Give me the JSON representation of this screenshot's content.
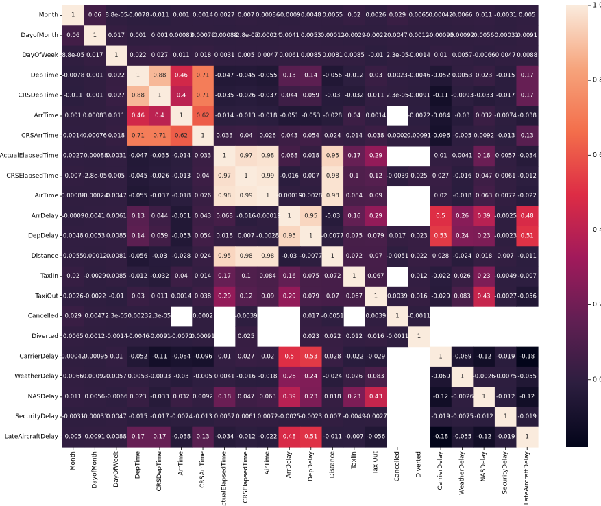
{
  "chart_data": {
    "type": "heatmap",
    "title": "",
    "xlabel": "",
    "ylabel": "",
    "labels": [
      "Month",
      "DayofMonth",
      "DayOfWeek",
      "DepTime",
      "CRSDepTime",
      "ArrTime",
      "CRSArrTime",
      "ActualElapsedTime",
      "CRSElapsedTime",
      "AirTime",
      "ArrDelay",
      "DepDelay",
      "Distance",
      "TaxiIn",
      "TaxiOut",
      "Cancelled",
      "Diverted",
      "CarrierDelay",
      "WeatherDelay",
      "NASDelay",
      "SecurityDelay",
      "LateAircraftDelay"
    ],
    "matrix": [
      [
        "1",
        "0.06",
        "8.8e-05",
        "-0.0078",
        "-0.011",
        "0.001",
        "0.0014",
        "0.0027",
        "0.007",
        "0.00086",
        "-0.0009",
        "0.0048",
        "0.0055",
        "0.02",
        "0.0026",
        "0.029",
        "0.0065",
        "0.00042",
        "0.0066",
        "0.011",
        "-0.0031",
        "0.005"
      ],
      [
        "0.06",
        "1",
        "0.017",
        "0.001",
        "0.001",
        "0.00083",
        "0.00076",
        "-0.00088",
        "-2.8e-05",
        "-0.00024",
        "0.0041",
        "0.0053",
        "0.00012",
        "-0.0029",
        "-0.0022",
        "0.0047",
        "0.0012",
        "-0.00095",
        "0.00092",
        "0.0056",
        "-0.00031",
        "0.0091"
      ],
      [
        "8.8e-05",
        "0.017",
        "1",
        "0.022",
        "0.027",
        "0.011",
        "0.018",
        "0.0031",
        "0.005",
        "0.0047",
        "0.0061",
        "0.0085",
        "0.0081",
        "0.0085",
        "-0.01",
        "2.3e-05",
        "-0.0014",
        "0.01",
        "0.0057",
        "-0.0066",
        "0.0047",
        "0.0088"
      ],
      [
        "-0.0078",
        "0.001",
        "0.022",
        "1",
        "0.88",
        "0.46",
        "0.71",
        "-0.047",
        "-0.045",
        "-0.055",
        "0.13",
        "0.14",
        "-0.056",
        "-0.012",
        "0.03",
        "0.0023",
        "-0.0046",
        "-0.052",
        "0.0053",
        "0.023",
        "-0.015",
        "0.17"
      ],
      [
        "-0.011",
        "0.001",
        "0.027",
        "0.88",
        "1",
        "0.4",
        "0.71",
        "-0.035",
        "-0.026",
        "-0.037",
        "0.044",
        "0.059",
        "-0.03",
        "-0.032",
        "0.011",
        "2.3e-05",
        "-0.0091",
        "-0.11",
        "-0.0093",
        "-0.033",
        "-0.017",
        "0.17"
      ],
      [
        "0.001",
        "0.00083",
        "0.011",
        "0.46",
        "0.4",
        "1",
        "0.62",
        "-0.014",
        "-0.013",
        "-0.018",
        "-0.051",
        "-0.053",
        "-0.028",
        "0.04",
        "0.0014",
        null,
        "-0.0072",
        "-0.084",
        "-0.03",
        "0.032",
        "-0.0074",
        "-0.038"
      ],
      [
        "0.0014",
        "0.00076",
        "0.018",
        "0.71",
        "0.71",
        "0.62",
        "1",
        "0.033",
        "0.04",
        "0.026",
        "0.043",
        "0.054",
        "0.024",
        "0.014",
        "0.038",
        "0.0002",
        "0.00091",
        "-0.096",
        "-0.005",
        "0.0092",
        "-0.013",
        "0.13"
      ],
      [
        "0.0027",
        "-0.00088",
        "0.0031",
        "-0.047",
        "-0.035",
        "-0.014",
        "0.033",
        "1",
        "0.97",
        "0.98",
        "0.068",
        "0.018",
        "0.95",
        "0.17",
        "0.29",
        null,
        null,
        "0.01",
        "0.0041",
        "0.18",
        "0.0057",
        "-0.034"
      ],
      [
        "0.007",
        "-2.8e-05",
        "0.005",
        "-0.045",
        "-0.026",
        "-0.013",
        "0.04",
        "0.97",
        "1",
        "0.99",
        "-0.016",
        "0.007",
        "0.98",
        "0.1",
        "0.12",
        "-0.0039",
        "0.025",
        "0.027",
        "-0.016",
        "0.047",
        "0.0061",
        "-0.012"
      ],
      [
        "0.00086",
        "-0.00024",
        "0.0047",
        "-0.055",
        "-0.037",
        "-0.018",
        "0.026",
        "0.98",
        "0.99",
        "1",
        "-0.00019",
        "-0.0028",
        "0.98",
        "0.084",
        "0.09",
        null,
        null,
        "0.02",
        "-0.018",
        "0.063",
        "0.0072",
        "-0.022"
      ],
      [
        "-0.0009",
        "0.0041",
        "0.0061",
        "0.13",
        "0.044",
        "-0.051",
        "0.043",
        "0.068",
        "-0.016",
        "-0.00019",
        "1",
        "0.95",
        "-0.03",
        "0.16",
        "0.29",
        null,
        null,
        "0.5",
        "0.26",
        "0.39",
        "-0.0025",
        "0.48"
      ],
      [
        "0.0048",
        "0.0053",
        "0.0085",
        "0.14",
        "0.059",
        "-0.053",
        "0.054",
        "0.018",
        "0.007",
        "-0.0028",
        "0.95",
        "1",
        "-0.0077",
        "0.075",
        "0.079",
        "0.017",
        "0.023",
        "0.53",
        "0.24",
        "0.23",
        "-0.0023",
        "0.51"
      ],
      [
        "0.0055",
        "0.00012",
        "0.0081",
        "-0.056",
        "-0.03",
        "-0.028",
        "0.024",
        "0.95",
        "0.98",
        "0.98",
        "-0.03",
        "-0.0077",
        "1",
        "0.072",
        "0.07",
        "-0.0051",
        "0.022",
        "0.028",
        "-0.024",
        "0.018",
        "0.007",
        "-0.011"
      ],
      [
        "0.02",
        "-0.0029",
        "0.0085",
        "-0.012",
        "-0.032",
        "0.04",
        "0.014",
        "0.17",
        "0.1",
        "0.084",
        "0.16",
        "0.075",
        "0.072",
        "1",
        "0.067",
        null,
        "0.012",
        "-0.022",
        "0.026",
        "0.23",
        "-0.0049",
        "-0.007"
      ],
      [
        "0.0026",
        "-0.0022",
        "-0.01",
        "0.03",
        "0.011",
        "0.0014",
        "0.038",
        "0.29",
        "0.12",
        "0.09",
        "0.29",
        "0.079",
        "0.07",
        "0.067",
        "1",
        "0.0039",
        "0.016",
        "-0.029",
        "0.083",
        "0.43",
        "-0.0027",
        "-0.056"
      ],
      [
        "0.029",
        "0.0047",
        "2.3e-05",
        "0.0023",
        "2.3e-05",
        null,
        "0.0002",
        null,
        "-0.0039",
        null,
        null,
        "0.017",
        "-0.0051",
        null,
        "0.0039",
        "1",
        "-0.0011",
        null,
        null,
        null,
        null,
        null
      ],
      [
        "0.0065",
        "0.0012",
        "-0.0014",
        "-0.0046",
        "-0.0091",
        "-0.0072",
        "0.00091",
        null,
        "0.025",
        null,
        null,
        "0.023",
        "0.022",
        "0.012",
        "0.016",
        "-0.0011",
        "1",
        null,
        null,
        null,
        null,
        null
      ],
      [
        "0.00042",
        "-0.00095",
        "0.01",
        "-0.052",
        "-0.11",
        "-0.084",
        "-0.096",
        "0.01",
        "0.027",
        "0.02",
        "0.5",
        "0.53",
        "0.028",
        "-0.022",
        "-0.029",
        null,
        null,
        "1",
        "-0.069",
        "-0.12",
        "-0.019",
        "-0.18"
      ],
      [
        "0.0066",
        "0.00092",
        "0.0057",
        "0.0053",
        "-0.0093",
        "-0.03",
        "-0.005",
        "0.0041",
        "-0.016",
        "-0.018",
        "0.26",
        "0.24",
        "-0.024",
        "0.026",
        "0.083",
        null,
        null,
        "-0.069",
        "1",
        "-0.0026",
        "-0.0075",
        "-0.055"
      ],
      [
        "0.011",
        "0.0056",
        "-0.0066",
        "0.023",
        "-0.033",
        "0.032",
        "0.0092",
        "0.18",
        "0.047",
        "0.063",
        "0.39",
        "0.23",
        "0.018",
        "0.23",
        "0.43",
        null,
        null,
        "-0.12",
        "-0.0026",
        "1",
        "-0.012",
        "-0.12"
      ],
      [
        "-0.0031",
        "-0.00031",
        "0.0047",
        "-0.015",
        "-0.017",
        "-0.0074",
        "-0.013",
        "0.0057",
        "0.0061",
        "0.0072",
        "-0.0025",
        "-0.0023",
        "0.007",
        "-0.0049",
        "-0.0027",
        null,
        null,
        "-0.019",
        "-0.0075",
        "-0.012",
        "1",
        "-0.019"
      ],
      [
        "0.005",
        "0.0091",
        "0.0088",
        "0.17",
        "0.17",
        "-0.038",
        "0.13",
        "-0.034",
        "-0.012",
        "-0.022",
        "0.48",
        "0.51",
        "-0.011",
        "-0.007",
        "-0.056",
        null,
        null,
        "-0.18",
        "-0.055",
        "-0.12",
        "-0.019",
        "1"
      ]
    ],
    "colorbar": {
      "min": -0.18,
      "max": 1.0,
      "ticks": [
        "1.0",
        "0.8",
        "0.6",
        "0.4",
        "0.2",
        "0.0"
      ],
      "colormap": [
        "#03051a",
        "#2c1e3f",
        "#611f53",
        "#a11a5b",
        "#dd2c45",
        "#f36e4b",
        "#f6a47c",
        "#faebdd"
      ]
    }
  }
}
